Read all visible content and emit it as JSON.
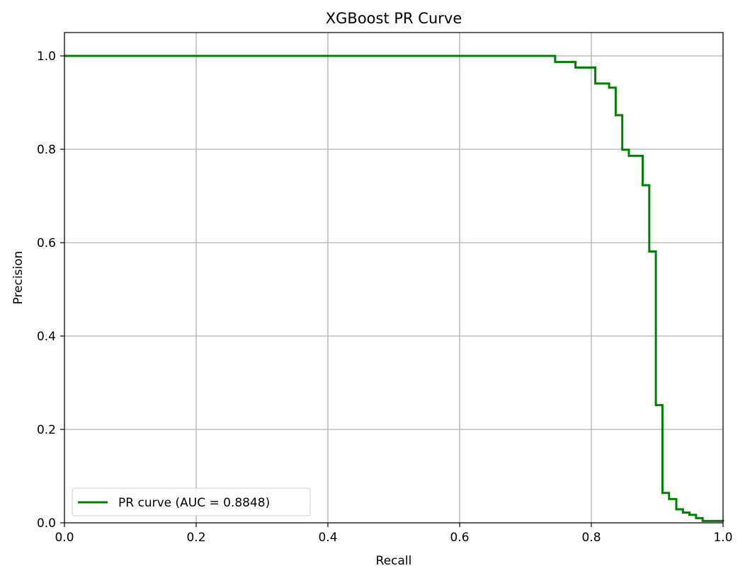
{
  "chart_data": {
    "type": "line",
    "title": "XGBoost PR Curve",
    "xlabel": "Recall",
    "ylabel": "Precision",
    "xlim": [
      0.0,
      1.0
    ],
    "ylim": [
      0.0,
      1.05
    ],
    "x_ticks": [
      0.0,
      0.2,
      0.4,
      0.6,
      0.8,
      1.0
    ],
    "y_ticks": [
      0.0,
      0.2,
      0.4,
      0.6,
      0.8,
      1.0
    ],
    "x_tick_labels": [
      "0.0",
      "0.2",
      "0.4",
      "0.6",
      "0.8",
      "1.0"
    ],
    "y_tick_labels": [
      "0.0",
      "0.2",
      "0.4",
      "0.6",
      "0.8",
      "1.0"
    ],
    "grid": true,
    "legend_position": "lower-left",
    "series": [
      {
        "name": "PR curve (AUC = 0.8848)",
        "color": "#008000",
        "step": "post",
        "x": [
          0.0,
          0.745,
          0.776,
          0.806,
          0.827,
          0.837,
          0.847,
          0.857,
          0.878,
          0.888,
          0.898,
          0.908,
          0.918,
          0.929,
          0.939,
          0.949,
          0.959,
          0.969,
          1.0
        ],
        "y": [
          1.0,
          0.987,
          0.975,
          0.941,
          0.932,
          0.873,
          0.799,
          0.786,
          0.723,
          0.581,
          0.252,
          0.064,
          0.051,
          0.029,
          0.022,
          0.017,
          0.01,
          0.004,
          0.003
        ]
      }
    ]
  }
}
